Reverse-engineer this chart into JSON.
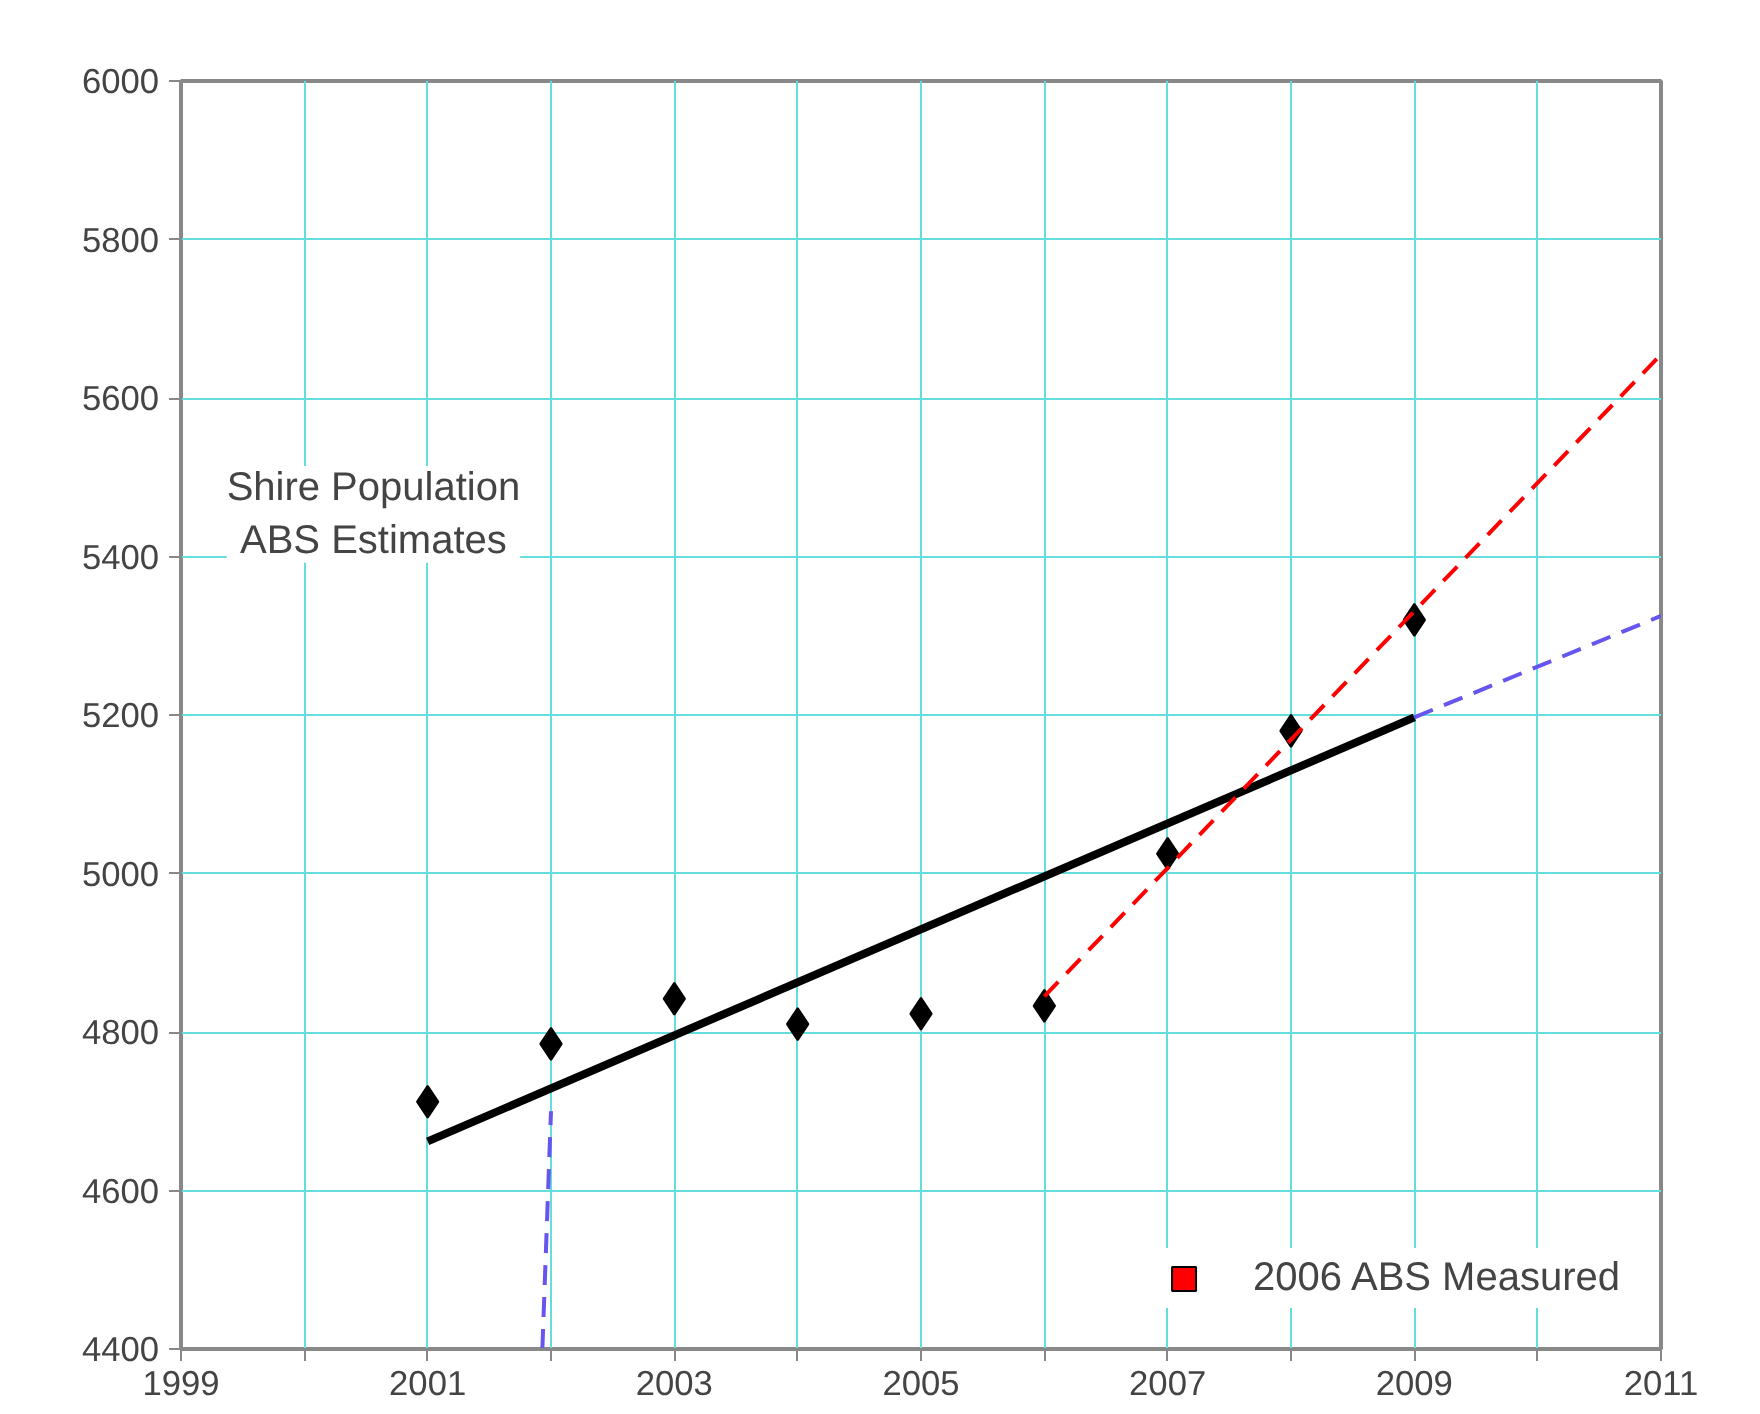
{
  "chart_data": {
    "type": "scatter",
    "x": [
      2001,
      2002,
      2003,
      2004,
      2005,
      2006,
      2007,
      2008,
      2009
    ],
    "series": [
      {
        "color": "#000000",
        "marker": "diamond",
        "values": [
          4712,
          4785,
          4842,
          4810,
          4823,
          4833,
          5025,
          5180,
          5320
        ]
      },
      {
        "type": "line",
        "color": "#000000",
        "line_style": "solid",
        "x": [
          2001,
          2009
        ],
        "values": [
          4662,
          5197
        ]
      },
      {
        "type": "line",
        "name": "2006 ABS Measured",
        "color": "#ff0000",
        "line_style": "dashed",
        "x": [
          2006,
          2011
        ],
        "values": [
          4845,
          5655
        ]
      },
      {
        "type": "line",
        "color": "#6655ee",
        "line_style": "dashed",
        "x": [
          2009,
          2011
        ],
        "values": [
          5197,
          5325
        ]
      },
      {
        "type": "line",
        "color": "#6655ee",
        "line_style": "dashed",
        "x": [
          2001.93,
          2002
        ],
        "values": [
          4400,
          4700
        ]
      }
    ],
    "annotations": [
      "Shire Population\nABS Estimates"
    ],
    "xlim": [
      1999,
      2011
    ],
    "xticks": [
      1999,
      {
        "value": 2000,
        "label": null
      },
      2001,
      {
        "value": 2002,
        "label": null
      },
      2003,
      {
        "value": 2004,
        "label": null
      },
      2005,
      {
        "value": 2006,
        "label": null
      },
      2007,
      {
        "value": 2008,
        "label": null
      },
      2009,
      {
        "value": 2010,
        "label": null
      },
      2011
    ],
    "ylim": [
      4400,
      6000
    ],
    "yticks": [
      4400,
      4600,
      4800,
      5000,
      5200,
      5400,
      5600,
      5800,
      6000
    ],
    "grid": true,
    "legend": "bottom right"
  }
}
